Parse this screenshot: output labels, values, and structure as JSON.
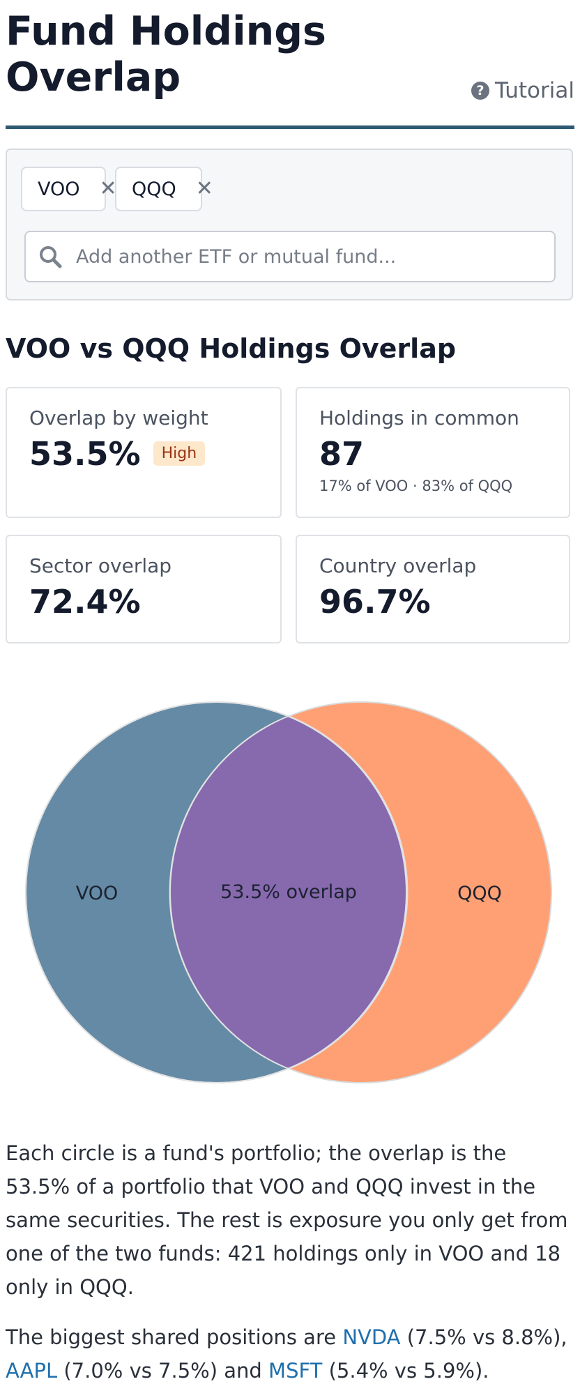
{
  "header": {
    "title_line1": "Fund Holdings",
    "title_line2": "Overlap",
    "tutorial_label": "Tutorial",
    "tutorial_icon": "question-circle-icon"
  },
  "picker": {
    "funds": [
      {
        "symbol": "VOO",
        "remove_icon": "close-icon"
      },
      {
        "symbol": "QQQ",
        "remove_icon": "close-icon"
      }
    ],
    "search": {
      "placeholder": "Add another ETF or mutual fund...",
      "value": "",
      "icon": "search-icon"
    }
  },
  "section_title": "VOO vs QQQ Holdings Overlap",
  "stats": {
    "weight_overlap": {
      "label": "Overlap by weight",
      "value": "53.5%",
      "badge": "High"
    },
    "holdings_common": {
      "label": "Holdings in common",
      "value": "87",
      "sub": "17% of VOO · 83% of QQQ"
    },
    "sector_overlap": {
      "label": "Sector overlap",
      "value": "72.4%"
    },
    "country_overlap": {
      "label": "Country overlap",
      "value": "96.7%"
    }
  },
  "venn": {
    "left_label": "VOO",
    "right_label": "QQQ",
    "center_label": "53.5% overlap",
    "overlap_percent": 53.5,
    "colors": {
      "left": "#648aa5",
      "right": "#ffa074",
      "overlap": "#8769ae"
    }
  },
  "explanation": {
    "p1": "Each circle is a fund's portfolio; the overlap is the 53.5% of a portfolio that VOO and QQQ invest in the same securities. The rest is exposure you only get from one of the two funds: 421 holdings only in VOO and 18 only in QQQ.",
    "p2_prefix": "The biggest shared positions are ",
    "shared": [
      {
        "ticker": "NVDA",
        "detail": " (7.5% vs 8.8%),"
      },
      {
        "ticker": "AAPL",
        "detail": " (7.0% vs 7.5%) and "
      },
      {
        "ticker": "MSFT",
        "detail": " (5.4% vs 5.9%)."
      }
    ]
  }
}
